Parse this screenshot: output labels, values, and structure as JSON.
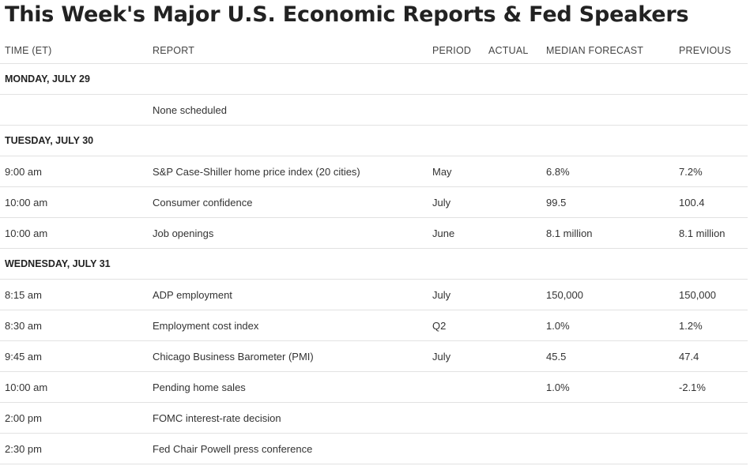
{
  "title": "This Week's Major U.S. Economic Reports & Fed Speakers",
  "columns": {
    "time": "TIME (ET)",
    "report": "REPORT",
    "period": "PERIOD",
    "actual": "ACTUAL",
    "median": "MEDIAN FORECAST",
    "previous": "PREVIOUS"
  },
  "rows": [
    {
      "type": "day",
      "label": "MONDAY, JULY 29"
    },
    {
      "type": "event",
      "time": "",
      "report": "None scheduled",
      "period": "",
      "actual": "",
      "median": "",
      "previous": ""
    },
    {
      "type": "day",
      "label": "TUESDAY, JULY 30"
    },
    {
      "type": "event",
      "time": "9:00 am",
      "report": "S&P Case-Shiller home price index (20 cities)",
      "period": "May",
      "actual": "",
      "median": "6.8%",
      "previous": "7.2%"
    },
    {
      "type": "event",
      "time": "10:00 am",
      "report": "Consumer confidence",
      "period": "July",
      "actual": "",
      "median": "99.5",
      "previous": "100.4"
    },
    {
      "type": "event",
      "time": "10:00 am",
      "report": "Job openings",
      "period": "June",
      "actual": "",
      "median": "8.1 million",
      "previous": "8.1 million"
    },
    {
      "type": "day",
      "label": "WEDNESDAY, JULY 31"
    },
    {
      "type": "event",
      "time": "8:15 am",
      "report": "ADP employment",
      "period": "July",
      "actual": "",
      "median": "150,000",
      "previous": "150,000"
    },
    {
      "type": "event",
      "time": "8:30 am",
      "report": "Employment cost index",
      "period": "Q2",
      "actual": "",
      "median": "1.0%",
      "previous": "1.2%"
    },
    {
      "type": "event",
      "time": "9:45 am",
      "report": "Chicago Business Barometer (PMI)",
      "period": "July",
      "actual": "",
      "median": "45.5",
      "previous": "47.4"
    },
    {
      "type": "event",
      "time": "10:00 am",
      "report": "Pending home sales",
      "period": "",
      "actual": "",
      "median": "1.0%",
      "previous": "-2.1%"
    },
    {
      "type": "event",
      "time": "2:00 pm",
      "report": "FOMC interest-rate decision",
      "period": "",
      "actual": "",
      "median": "",
      "previous": ""
    },
    {
      "type": "event",
      "time": "2:30 pm",
      "report": "Fed Chair Powell press conference",
      "period": "",
      "actual": "",
      "median": "",
      "previous": ""
    }
  ]
}
